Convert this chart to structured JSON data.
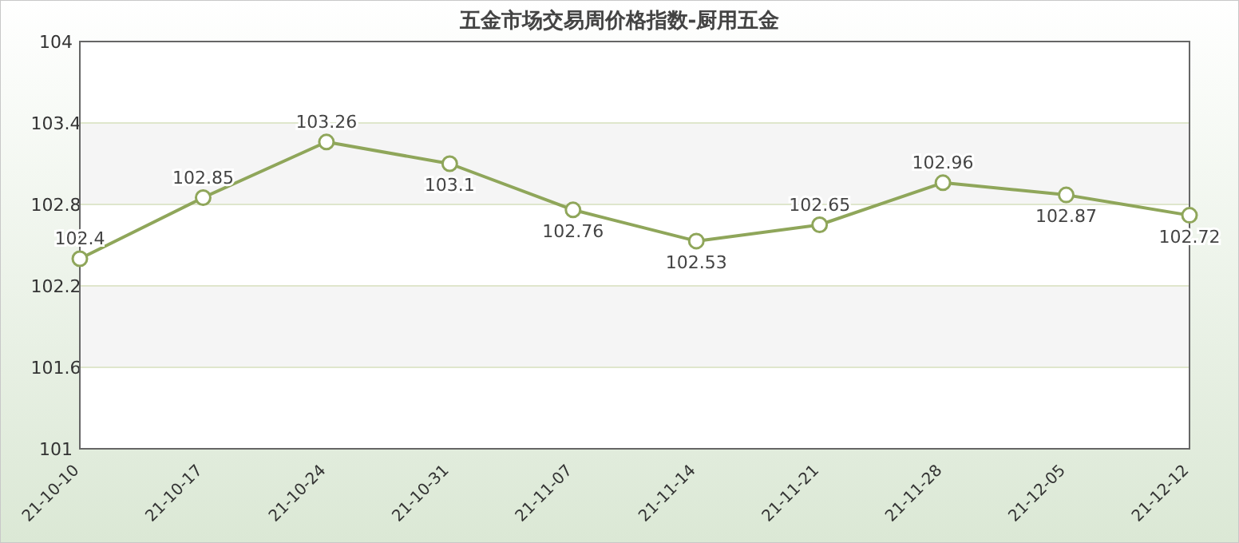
{
  "chart_data": {
    "type": "line",
    "title": "五金市场交易周价格指数-厨用五金",
    "categories": [
      "21-10-10",
      "21-10-17",
      "21-10-24",
      "21-10-31",
      "21-11-07",
      "21-11-14",
      "21-11-21",
      "21-11-28",
      "21-12-05",
      "21-12-12"
    ],
    "series": [
      {
        "color": "#8fa65a",
        "values": [
          102.4,
          102.85,
          103.26,
          103.1,
          102.76,
          102.53,
          102.65,
          102.96,
          102.87,
          102.72
        ]
      }
    ],
    "ylim": [
      101,
      104
    ],
    "yticks": [
      101,
      101.6,
      102.2,
      102.8,
      103.4,
      104
    ],
    "bands": [
      {
        "axis": "y",
        "from": 101.6,
        "to": 102.2,
        "color": "#f5f5f5"
      },
      {
        "axis": "y",
        "from": 102.8,
        "to": 103.4,
        "color": "#f5f5f5"
      }
    ],
    "grid": "y",
    "marker": "circle",
    "data_labels": true
  }
}
